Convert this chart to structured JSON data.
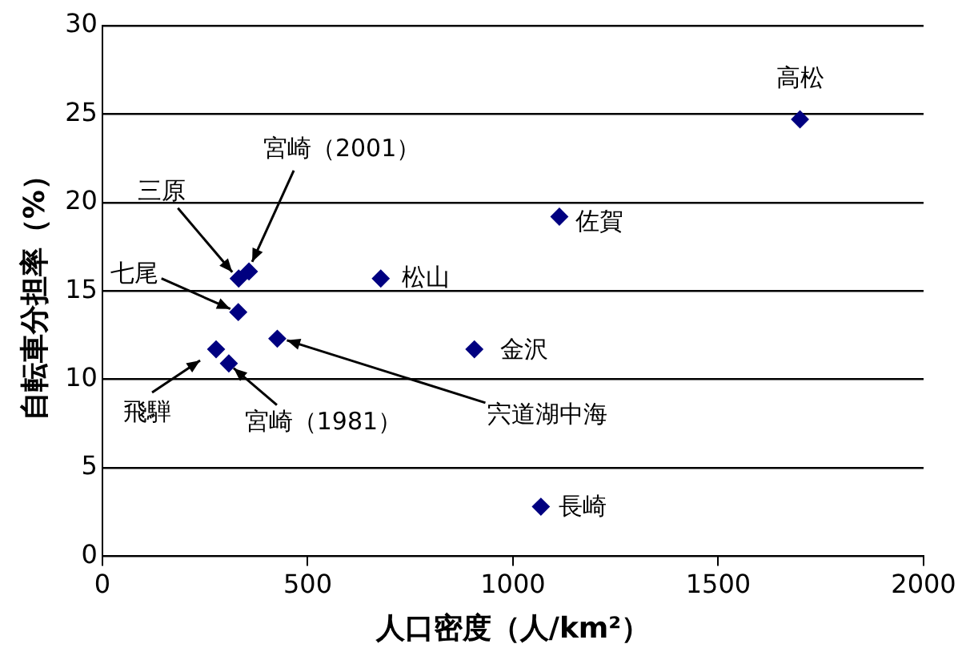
{
  "chart_data": {
    "type": "scatter",
    "xlabel": "人口密度（人/km²）",
    "ylabel": "自転車分担率（%）",
    "series": [
      {
        "color": "#000080",
        "x": [
          1699,
          1113,
          1068,
          678,
          906,
          426,
          357,
          332,
          331,
          277,
          308
        ],
        "values": [
          24.7,
          19.2,
          2.8,
          15.7,
          11.7,
          12.3,
          16.1,
          15.7,
          13.8,
          11.7,
          10.9
        ]
      }
    ],
    "xlim": [
      0,
      2000
    ],
    "xticks": [
      0,
      500,
      1000,
      1500,
      2000
    ],
    "ylim": [
      0,
      30
    ],
    "yticks": [
      0,
      5,
      10,
      15,
      20,
      25,
      30
    ],
    "grid": "y",
    "legend": false,
    "marker": "diamond",
    "annotations": [
      {
        "text": "高松",
        "x": 1699,
        "y": 24.7
      },
      {
        "text": "佐賀",
        "x": 1113,
        "y": 19.2
      },
      {
        "text": "長崎",
        "x": 1068,
        "y": 2.8
      },
      {
        "text": "松山",
        "x": 678,
        "y": 15.7
      },
      {
        "text": "金沢",
        "x": 906,
        "y": 11.7
      },
      {
        "text": "宍道湖中海",
        "x": 426,
        "y": 12.3
      },
      {
        "text": "宮崎（2001）",
        "x": 357,
        "y": 16.1
      },
      {
        "text": "三原",
        "x": 332,
        "y": 15.7
      },
      {
        "text": "七尾",
        "x": 331,
        "y": 13.8
      },
      {
        "text": "飛騨",
        "x": 277,
        "y": 11.7
      },
      {
        "text": "宮崎（1981）",
        "x": 308,
        "y": 10.9
      }
    ]
  }
}
